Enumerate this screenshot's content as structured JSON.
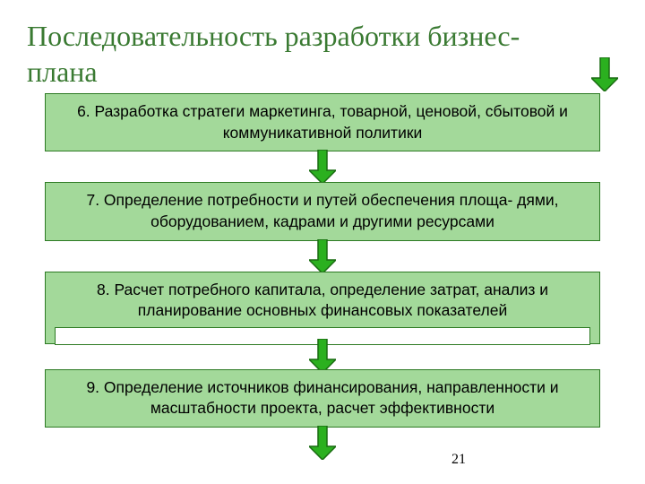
{
  "title": "Последовательность разработки бизнес-плана",
  "title_color": "#3a7a32",
  "page_number": "21",
  "colors": {
    "box_fill": "#a3d99a",
    "box_border": "#2d7a23",
    "arrow_fill": "#2bb01f",
    "arrow_stroke": "#1a6b12",
    "text": "#000000",
    "bg": "#ffffff"
  },
  "arrow": {
    "width": 30,
    "height": 38,
    "stem_w": 10,
    "head_h": 15
  },
  "steps": [
    {
      "text": "6. Разработка стратеги маркетинга, товарной, ценовой, сбытовой и коммуникативной политики",
      "stripe": false
    },
    {
      "text": "7. Определение потребности и путей обеспечения площа- дями, оборудованием, кадрами и другими ресурсами",
      "stripe": false
    },
    {
      "text": "8. Расчет потребного капитала, определение затрат, анализ и планирование основных финансовых показателей",
      "stripe": true
    },
    {
      "text": "9. Определение источников финансирования, направленности и масштабности проекта, расчет эффективности",
      "stripe": false
    }
  ]
}
